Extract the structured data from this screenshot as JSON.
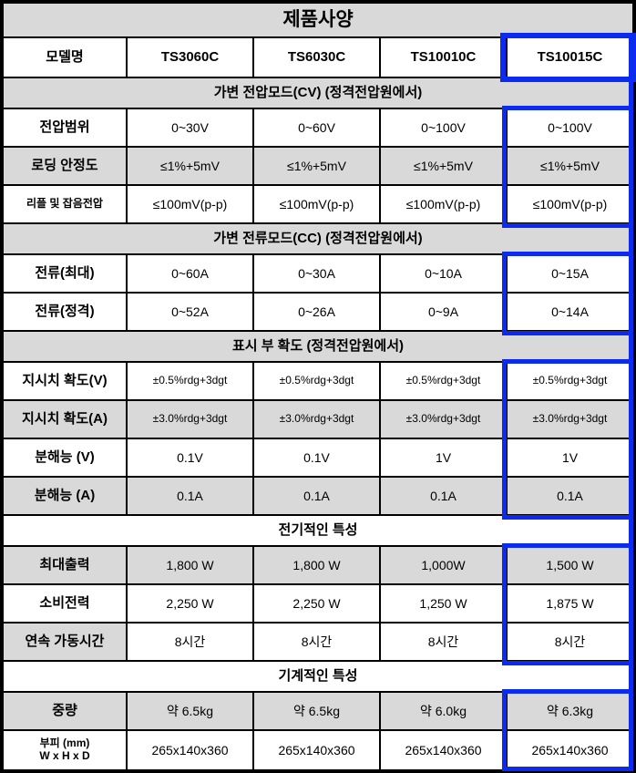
{
  "colors": {
    "highlight_blue": "#0d2bef",
    "header_gray": "#d9d9d9",
    "border_black": "#000000"
  },
  "table": {
    "title": "제품사양",
    "model": {
      "label": "모델명",
      "names": [
        "TS3060C",
        "TS6030C",
        "TS10010C",
        "TS10015C"
      ],
      "highlighted_model": "TS10015C"
    },
    "sections": [
      {
        "header": "가변 전압모드(CV) (정격전압원에서)",
        "rows": [
          {
            "label": "전압범위",
            "values": [
              "0~30V",
              "0~60V",
              "0~100V",
              "0~100V"
            ]
          },
          {
            "label": "로딩 안정도",
            "values": [
              "≤1%+5mV",
              "≤1%+5mV",
              "≤1%+5mV",
              "≤1%+5mV"
            ]
          },
          {
            "label": "리플 및 잡음전압",
            "values": [
              "≤100mV(p-p)",
              "≤100mV(p-p)",
              "≤100mV(p-p)",
              "≤100mV(p-p)"
            ]
          }
        ]
      },
      {
        "header": "가변 전류모드(CC) (정격전압원에서)",
        "rows": [
          {
            "label": "전류(최대)",
            "values": [
              "0~60A",
              "0~30A",
              "0~10A",
              "0~15A"
            ]
          },
          {
            "label": "전류(정격)",
            "values": [
              "0~52A",
              "0~26A",
              "0~9A",
              "0~14A"
            ]
          }
        ]
      },
      {
        "header": "표시 부 확도 (정격전압원에서)",
        "rows": [
          {
            "label": "지시치 확도(V)",
            "values": [
              "±0.5%rdg+3dgt",
              "±0.5%rdg+3dgt",
              "±0.5%rdg+3dgt",
              "±0.5%rdg+3dgt"
            ]
          },
          {
            "label": "지시치 확도(A)",
            "values": [
              "±3.0%rdg+3dgt",
              "±3.0%rdg+3dgt",
              "±3.0%rdg+3dgt",
              "±3.0%rdg+3dgt"
            ]
          },
          {
            "label": "분해능 (V)",
            "values": [
              "0.1V",
              "0.1V",
              "1V",
              "1V"
            ]
          },
          {
            "label": "분해능 (A)",
            "values": [
              "0.1A",
              "0.1A",
              "0.1A",
              "0.1A"
            ]
          }
        ]
      },
      {
        "header": "전기적인 특성",
        "rows": [
          {
            "label": "최대출력",
            "values": [
              "1,800 W",
              "1,800 W",
              "1,000W",
              "1,500 W"
            ]
          },
          {
            "label": "소비전력",
            "values": [
              "2,250 W",
              "2,250 W",
              "1,250 W",
              "1,875 W"
            ]
          },
          {
            "label": "연속 가동시간",
            "values": [
              "8시간",
              "8시간",
              "8시간",
              "8시간"
            ]
          }
        ]
      },
      {
        "header": "기계적인 특성",
        "rows": [
          {
            "label": "중량",
            "values": [
              "약 6.5kg",
              "약 6.5kg",
              "약 6.0kg",
              "약 6.3kg"
            ]
          },
          {
            "label": "부피 (mm)",
            "label_sub": "W x H x D",
            "values": [
              "265x140x360",
              "265x140x360",
              "265x140x360",
              "265x140x360"
            ]
          }
        ]
      }
    ]
  }
}
